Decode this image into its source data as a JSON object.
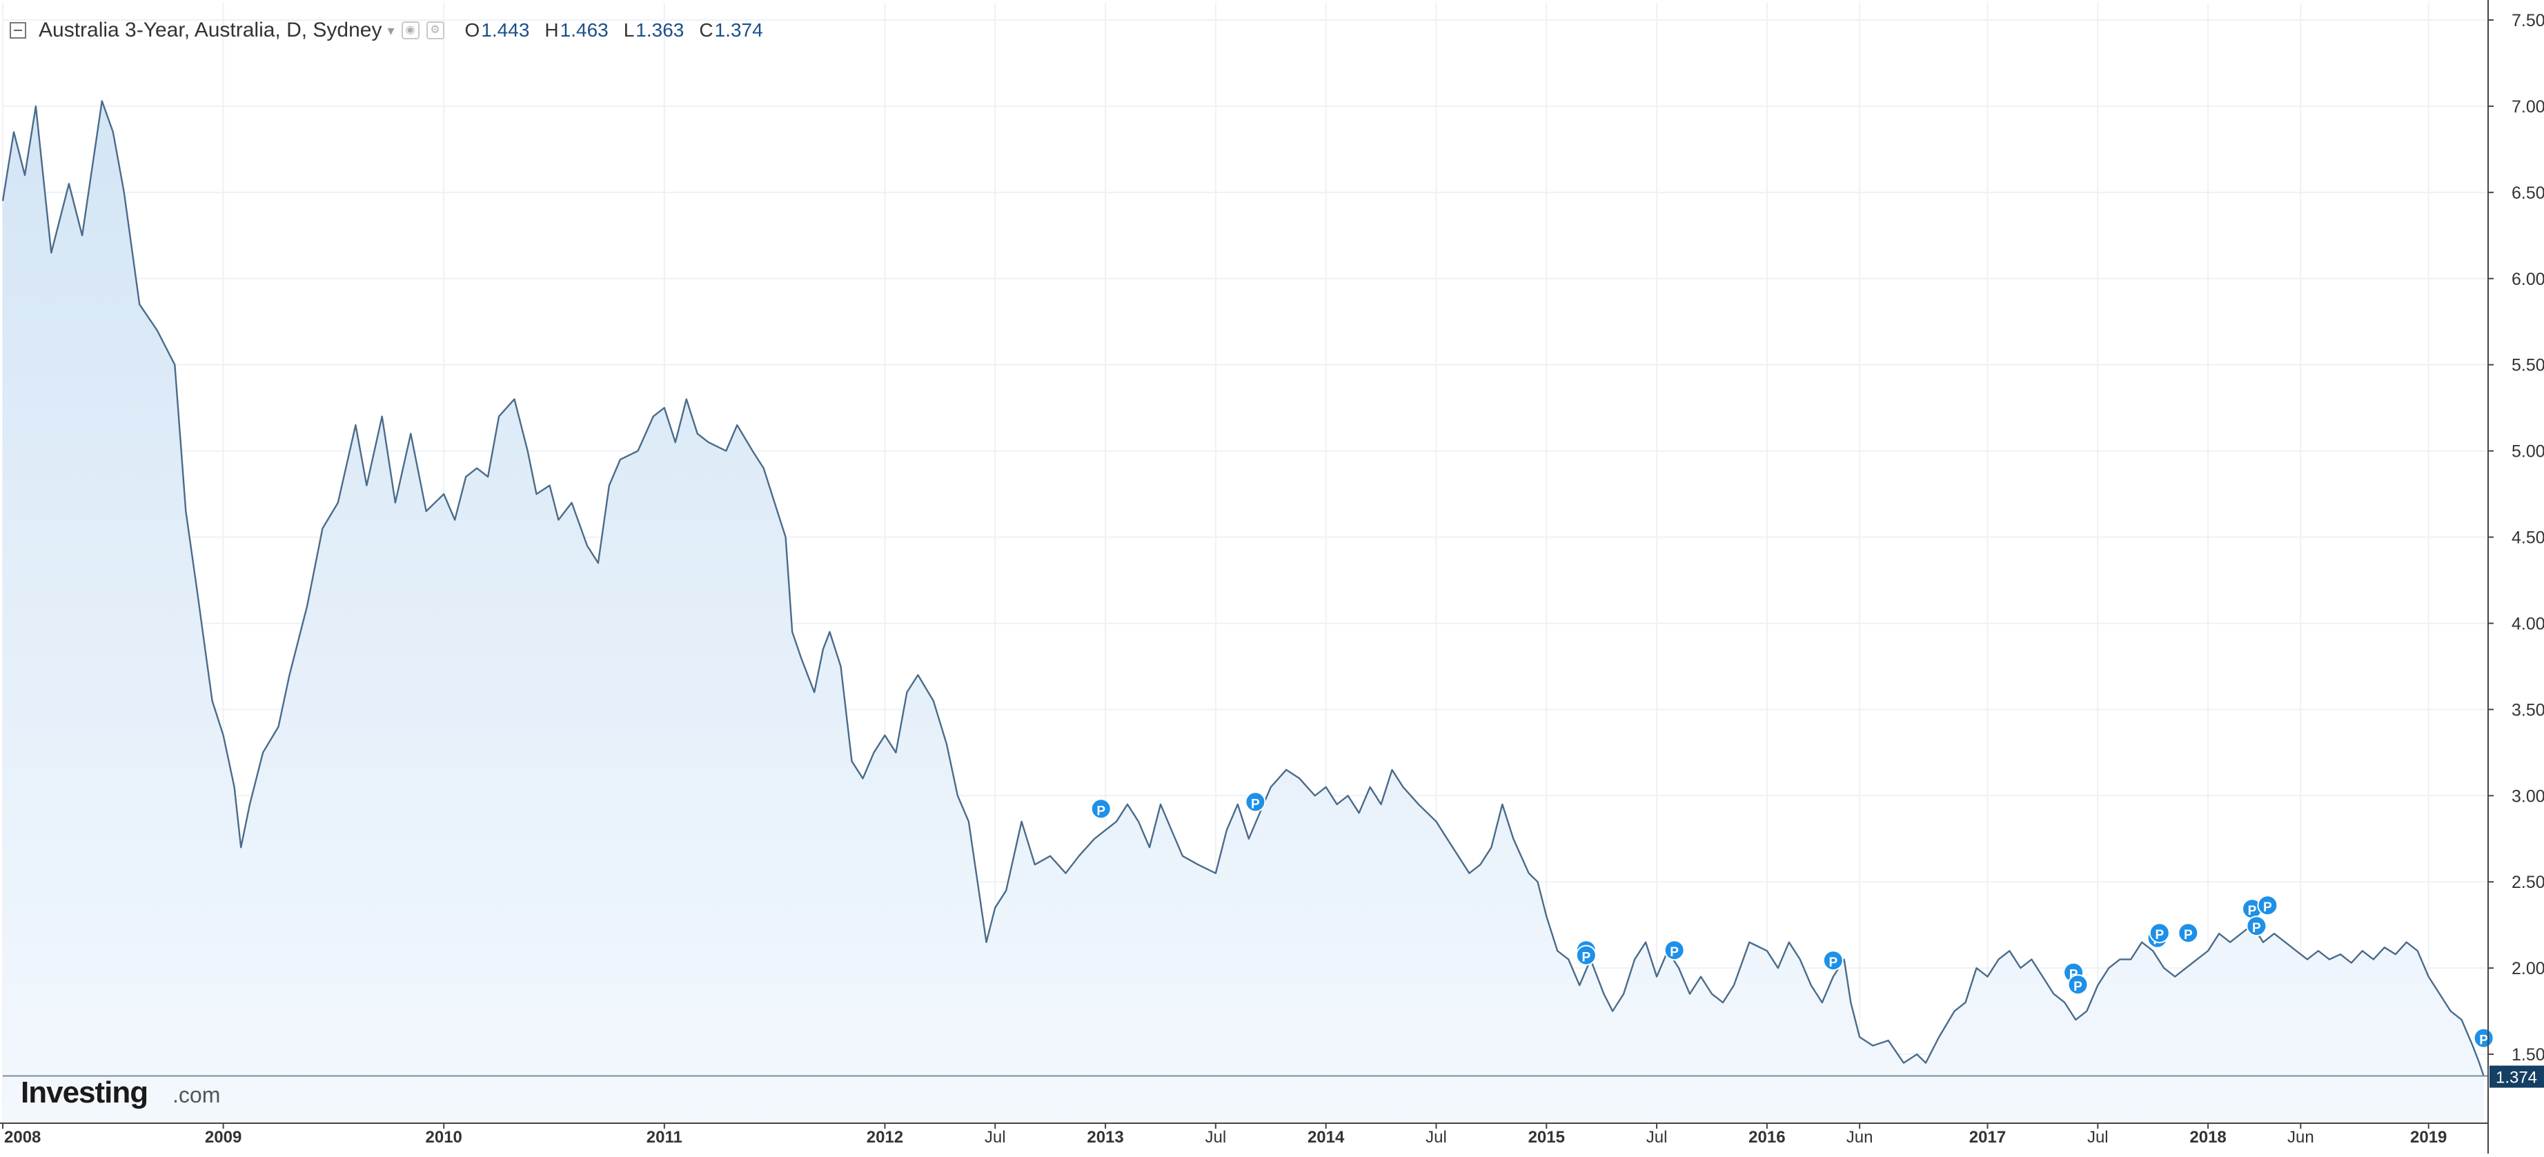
{
  "chart_data": {
    "type": "area",
    "title": "Australia 3-Year, Australia, D, Sydney",
    "ohlc": [
      {
        "label": "O",
        "value": "1.443"
      },
      {
        "label": "H",
        "value": "1.463"
      },
      {
        "label": "L",
        "value": "1.363"
      },
      {
        "label": "C",
        "value": "1.374"
      }
    ],
    "last_value": 1.374,
    "last_value_label": "1.374",
    "ylim": [
      1.1,
      7.6
    ],
    "xlim": [
      2008.0,
      2019.27
    ],
    "y_ticks": [
      {
        "value": 7.5,
        "label": "7.500"
      },
      {
        "value": 7.0,
        "label": "7.000"
      },
      {
        "value": 6.5,
        "label": "6.500"
      },
      {
        "value": 6.0,
        "label": "6.000"
      },
      {
        "value": 5.5,
        "label": "5.500"
      },
      {
        "value": 5.0,
        "label": "5.000"
      },
      {
        "value": 4.5,
        "label": "4.500"
      },
      {
        "value": 4.0,
        "label": "4.000"
      },
      {
        "value": 3.5,
        "label": "3.500"
      },
      {
        "value": 3.0,
        "label": "3.000"
      },
      {
        "value": 2.5,
        "label": "2.500"
      },
      {
        "value": 2.0,
        "label": "2.000"
      },
      {
        "value": 1.5,
        "label": "1.500"
      }
    ],
    "x_ticks": [
      {
        "t": 2008.0,
        "label": "2008",
        "bold": true
      },
      {
        "t": 2009.0,
        "label": "2009",
        "bold": true
      },
      {
        "t": 2010.0,
        "label": "2010",
        "bold": true
      },
      {
        "t": 2011.0,
        "label": "2011",
        "bold": true
      },
      {
        "t": 2012.0,
        "label": "2012",
        "bold": true
      },
      {
        "t": 2012.5,
        "label": "Jul",
        "bold": false
      },
      {
        "t": 2013.0,
        "label": "2013",
        "bold": true
      },
      {
        "t": 2013.5,
        "label": "Jul",
        "bold": false
      },
      {
        "t": 2014.0,
        "label": "2014",
        "bold": true
      },
      {
        "t": 2014.5,
        "label": "Jul",
        "bold": false
      },
      {
        "t": 2015.0,
        "label": "2015",
        "bold": true
      },
      {
        "t": 2015.5,
        "label": "Jul",
        "bold": false
      },
      {
        "t": 2016.0,
        "label": "2016",
        "bold": true
      },
      {
        "t": 2016.42,
        "label": "Jun",
        "bold": false
      },
      {
        "t": 2017.0,
        "label": "2017",
        "bold": true
      },
      {
        "t": 2017.5,
        "label": "Jul",
        "bold": false
      },
      {
        "t": 2018.0,
        "label": "2018",
        "bold": true
      },
      {
        "t": 2018.42,
        "label": "Jun",
        "bold": false
      },
      {
        "t": 2019.0,
        "label": "2019",
        "bold": true
      }
    ],
    "series": [
      {
        "points": [
          [
            2008.0,
            6.45
          ],
          [
            2008.05,
            6.85
          ],
          [
            2008.1,
            6.6
          ],
          [
            2008.15,
            7.0
          ],
          [
            2008.22,
            6.15
          ],
          [
            2008.3,
            6.55
          ],
          [
            2008.36,
            6.25
          ],
          [
            2008.45,
            7.03
          ],
          [
            2008.5,
            6.85
          ],
          [
            2008.55,
            6.5
          ],
          [
            2008.62,
            5.85
          ],
          [
            2008.7,
            5.7
          ],
          [
            2008.78,
            5.5
          ],
          [
            2008.83,
            4.65
          ],
          [
            2008.88,
            4.2
          ],
          [
            2008.95,
            3.55
          ],
          [
            2009.0,
            3.35
          ],
          [
            2009.05,
            3.05
          ],
          [
            2009.08,
            2.7
          ],
          [
            2009.12,
            2.95
          ],
          [
            2009.18,
            3.25
          ],
          [
            2009.25,
            3.4
          ],
          [
            2009.3,
            3.7
          ],
          [
            2009.38,
            4.1
          ],
          [
            2009.45,
            4.55
          ],
          [
            2009.52,
            4.7
          ],
          [
            2009.6,
            5.15
          ],
          [
            2009.65,
            4.8
          ],
          [
            2009.72,
            5.2
          ],
          [
            2009.78,
            4.7
          ],
          [
            2009.85,
            5.1
          ],
          [
            2009.92,
            4.65
          ],
          [
            2010.0,
            4.75
          ],
          [
            2010.05,
            4.6
          ],
          [
            2010.1,
            4.85
          ],
          [
            2010.15,
            4.9
          ],
          [
            2010.2,
            4.85
          ],
          [
            2010.25,
            5.2
          ],
          [
            2010.32,
            5.3
          ],
          [
            2010.38,
            5.0
          ],
          [
            2010.42,
            4.75
          ],
          [
            2010.48,
            4.8
          ],
          [
            2010.52,
            4.6
          ],
          [
            2010.58,
            4.7
          ],
          [
            2010.65,
            4.45
          ],
          [
            2010.7,
            4.35
          ],
          [
            2010.75,
            4.8
          ],
          [
            2010.8,
            4.95
          ],
          [
            2010.88,
            5.0
          ],
          [
            2010.95,
            5.2
          ],
          [
            2011.0,
            5.25
          ],
          [
            2011.05,
            5.05
          ],
          [
            2011.1,
            5.3
          ],
          [
            2011.15,
            5.1
          ],
          [
            2011.2,
            5.05
          ],
          [
            2011.28,
            5.0
          ],
          [
            2011.33,
            5.15
          ],
          [
            2011.4,
            5.0
          ],
          [
            2011.45,
            4.9
          ],
          [
            2011.5,
            4.7
          ],
          [
            2011.55,
            4.5
          ],
          [
            2011.58,
            3.95
          ],
          [
            2011.62,
            3.8
          ],
          [
            2011.68,
            3.6
          ],
          [
            2011.72,
            3.85
          ],
          [
            2011.75,
            3.95
          ],
          [
            2011.8,
            3.75
          ],
          [
            2011.85,
            3.2
          ],
          [
            2011.9,
            3.1
          ],
          [
            2011.95,
            3.25
          ],
          [
            2012.0,
            3.35
          ],
          [
            2012.05,
            3.25
          ],
          [
            2012.1,
            3.6
          ],
          [
            2012.15,
            3.7
          ],
          [
            2012.22,
            3.55
          ],
          [
            2012.28,
            3.3
          ],
          [
            2012.33,
            3.0
          ],
          [
            2012.38,
            2.85
          ],
          [
            2012.42,
            2.5
          ],
          [
            2012.46,
            2.15
          ],
          [
            2012.5,
            2.35
          ],
          [
            2012.55,
            2.45
          ],
          [
            2012.62,
            2.85
          ],
          [
            2012.68,
            2.6
          ],
          [
            2012.75,
            2.65
          ],
          [
            2012.82,
            2.55
          ],
          [
            2012.88,
            2.65
          ],
          [
            2012.95,
            2.75
          ],
          [
            2013.0,
            2.8
          ],
          [
            2013.05,
            2.85
          ],
          [
            2013.1,
            2.95
          ],
          [
            2013.15,
            2.85
          ],
          [
            2013.2,
            2.7
          ],
          [
            2013.25,
            2.95
          ],
          [
            2013.3,
            2.8
          ],
          [
            2013.35,
            2.65
          ],
          [
            2013.42,
            2.6
          ],
          [
            2013.5,
            2.55
          ],
          [
            2013.55,
            2.8
          ],
          [
            2013.6,
            2.95
          ],
          [
            2013.65,
            2.75
          ],
          [
            2013.7,
            2.9
          ],
          [
            2013.75,
            3.05
          ],
          [
            2013.82,
            3.15
          ],
          [
            2013.88,
            3.1
          ],
          [
            2013.95,
            3.0
          ],
          [
            2014.0,
            3.05
          ],
          [
            2014.05,
            2.95
          ],
          [
            2014.1,
            3.0
          ],
          [
            2014.15,
            2.9
          ],
          [
            2014.2,
            3.05
          ],
          [
            2014.25,
            2.95
          ],
          [
            2014.3,
            3.15
          ],
          [
            2014.35,
            3.05
          ],
          [
            2014.42,
            2.95
          ],
          [
            2014.5,
            2.85
          ],
          [
            2014.55,
            2.75
          ],
          [
            2014.6,
            2.65
          ],
          [
            2014.65,
            2.55
          ],
          [
            2014.7,
            2.6
          ],
          [
            2014.75,
            2.7
          ],
          [
            2014.8,
            2.95
          ],
          [
            2014.85,
            2.75
          ],
          [
            2014.92,
            2.55
          ],
          [
            2014.96,
            2.5
          ],
          [
            2015.0,
            2.3
          ],
          [
            2015.05,
            2.1
          ],
          [
            2015.1,
            2.05
          ],
          [
            2015.15,
            1.9
          ],
          [
            2015.2,
            2.05
          ],
          [
            2015.26,
            1.85
          ],
          [
            2015.3,
            1.75
          ],
          [
            2015.35,
            1.85
          ],
          [
            2015.4,
            2.05
          ],
          [
            2015.45,
            2.15
          ],
          [
            2015.5,
            1.95
          ],
          [
            2015.55,
            2.1
          ],
          [
            2015.6,
            2.0
          ],
          [
            2015.65,
            1.85
          ],
          [
            2015.7,
            1.95
          ],
          [
            2015.75,
            1.85
          ],
          [
            2015.8,
            1.8
          ],
          [
            2015.85,
            1.9
          ],
          [
            2015.92,
            2.15
          ],
          [
            2016.0,
            2.1
          ],
          [
            2016.05,
            2.0
          ],
          [
            2016.1,
            2.15
          ],
          [
            2016.15,
            2.05
          ],
          [
            2016.2,
            1.9
          ],
          [
            2016.25,
            1.8
          ],
          [
            2016.3,
            1.95
          ],
          [
            2016.35,
            2.05
          ],
          [
            2016.38,
            1.8
          ],
          [
            2016.42,
            1.6
          ],
          [
            2016.48,
            1.55
          ],
          [
            2016.55,
            1.58
          ],
          [
            2016.62,
            1.45
          ],
          [
            2016.68,
            1.5
          ],
          [
            2016.72,
            1.45
          ],
          [
            2016.78,
            1.6
          ],
          [
            2016.85,
            1.75
          ],
          [
            2016.9,
            1.8
          ],
          [
            2016.95,
            2.0
          ],
          [
            2017.0,
            1.95
          ],
          [
            2017.05,
            2.05
          ],
          [
            2017.1,
            2.1
          ],
          [
            2017.15,
            2.0
          ],
          [
            2017.2,
            2.05
          ],
          [
            2017.25,
            1.95
          ],
          [
            2017.3,
            1.85
          ],
          [
            2017.35,
            1.8
          ],
          [
            2017.4,
            1.7
          ],
          [
            2017.45,
            1.75
          ],
          [
            2017.5,
            1.9
          ],
          [
            2017.55,
            2.0
          ],
          [
            2017.6,
            2.05
          ],
          [
            2017.65,
            2.05
          ],
          [
            2017.7,
            2.15
          ],
          [
            2017.75,
            2.1
          ],
          [
            2017.8,
            2.0
          ],
          [
            2017.85,
            1.95
          ],
          [
            2017.9,
            2.0
          ],
          [
            2017.95,
            2.05
          ],
          [
            2018.0,
            2.1
          ],
          [
            2018.05,
            2.2
          ],
          [
            2018.1,
            2.15
          ],
          [
            2018.15,
            2.2
          ],
          [
            2018.2,
            2.25
          ],
          [
            2018.25,
            2.15
          ],
          [
            2018.3,
            2.2
          ],
          [
            2018.35,
            2.15
          ],
          [
            2018.4,
            2.1
          ],
          [
            2018.45,
            2.05
          ],
          [
            2018.5,
            2.1
          ],
          [
            2018.55,
            2.05
          ],
          [
            2018.6,
            2.08
          ],
          [
            2018.65,
            2.03
          ],
          [
            2018.7,
            2.1
          ],
          [
            2018.75,
            2.05
          ],
          [
            2018.8,
            2.12
          ],
          [
            2018.85,
            2.08
          ],
          [
            2018.9,
            2.15
          ],
          [
            2018.95,
            2.1
          ],
          [
            2019.0,
            1.95
          ],
          [
            2019.05,
            1.85
          ],
          [
            2019.1,
            1.75
          ],
          [
            2019.15,
            1.7
          ],
          [
            2019.2,
            1.55
          ],
          [
            2019.23,
            1.45
          ],
          [
            2019.25,
            1.374
          ]
        ]
      }
    ],
    "annotations": {
      "marker_label": "P",
      "markers": [
        {
          "t": 2012.98,
          "v": 2.9
        },
        {
          "t": 2013.68,
          "v": 2.94
        },
        {
          "t": 2015.18,
          "v": 2.08
        },
        {
          "t": 2015.18,
          "v": 2.05
        },
        {
          "t": 2015.58,
          "v": 2.08
        },
        {
          "t": 2016.3,
          "v": 2.02
        },
        {
          "t": 2017.39,
          "v": 1.95
        },
        {
          "t": 2017.41,
          "v": 1.88
        },
        {
          "t": 2017.77,
          "v": 2.15
        },
        {
          "t": 2017.78,
          "v": 2.18
        },
        {
          "t": 2017.91,
          "v": 2.18
        },
        {
          "t": 2018.2,
          "v": 2.32
        },
        {
          "t": 2018.22,
          "v": 2.22
        },
        {
          "t": 2018.27,
          "v": 2.34
        },
        {
          "t": 2019.25,
          "v": 1.57
        }
      ]
    },
    "grid": true,
    "legend": "none",
    "colors": {
      "line": "#4a6b8a",
      "fill_top": "#d4e5f5",
      "fill_bottom": "#f3f8fd",
      "marker": "#1e90e8",
      "price_label_bg": "#153f63",
      "grid": "#eef1f5"
    }
  },
  "watermark": {
    "brand": "Investing",
    "suffix": ".com"
  }
}
